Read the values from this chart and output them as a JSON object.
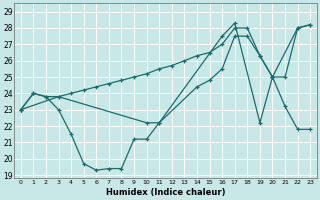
{
  "xlabel": "Humidex (Indice chaleur)",
  "xlim": [
    -0.5,
    23.5
  ],
  "ylim": [
    18.8,
    29.5
  ],
  "yticks": [
    19,
    20,
    21,
    22,
    23,
    24,
    25,
    26,
    27,
    28,
    29
  ],
  "xticks": [
    0,
    1,
    2,
    3,
    4,
    5,
    6,
    7,
    8,
    9,
    10,
    11,
    12,
    13,
    14,
    15,
    16,
    17,
    18,
    19,
    20,
    21,
    22,
    23
  ],
  "bg_color": "#c8e8e8",
  "grid_color": "#ffffff",
  "line_color": "#1a6b6b",
  "s1_x": [
    0,
    1,
    2,
    3,
    4,
    5,
    6,
    7,
    8,
    9,
    10,
    11,
    16,
    17,
    19,
    20,
    21,
    22,
    23
  ],
  "s1_y": [
    23,
    24,
    23.8,
    23,
    21.5,
    19.7,
    19.3,
    19.4,
    19.4,
    21.2,
    21.2,
    22.2,
    27.5,
    28.3,
    22.2,
    25.0,
    23.2,
    21.8,
    21.8
  ],
  "s2_x": [
    0,
    3,
    10,
    11,
    14,
    15,
    16,
    17,
    18,
    19,
    20,
    22,
    23
  ],
  "s2_y": [
    23,
    23.8,
    22.2,
    22.2,
    24.4,
    24.8,
    25.5,
    27.5,
    27.5,
    26.3,
    25.0,
    28.0,
    28.2
  ],
  "s3_x": [
    0,
    1,
    2,
    3,
    4,
    5,
    6,
    7,
    8,
    9,
    10,
    11,
    12,
    13,
    14,
    15,
    16,
    17,
    18,
    19,
    20,
    21,
    22,
    23
  ],
  "s3_y": [
    23,
    24,
    23.8,
    23.8,
    24.0,
    24.2,
    24.4,
    24.6,
    24.8,
    25.0,
    25.2,
    25.5,
    25.7,
    26.0,
    26.3,
    26.5,
    27.0,
    28.0,
    28.0,
    26.3,
    25.0,
    25.0,
    28.0,
    28.2
  ]
}
